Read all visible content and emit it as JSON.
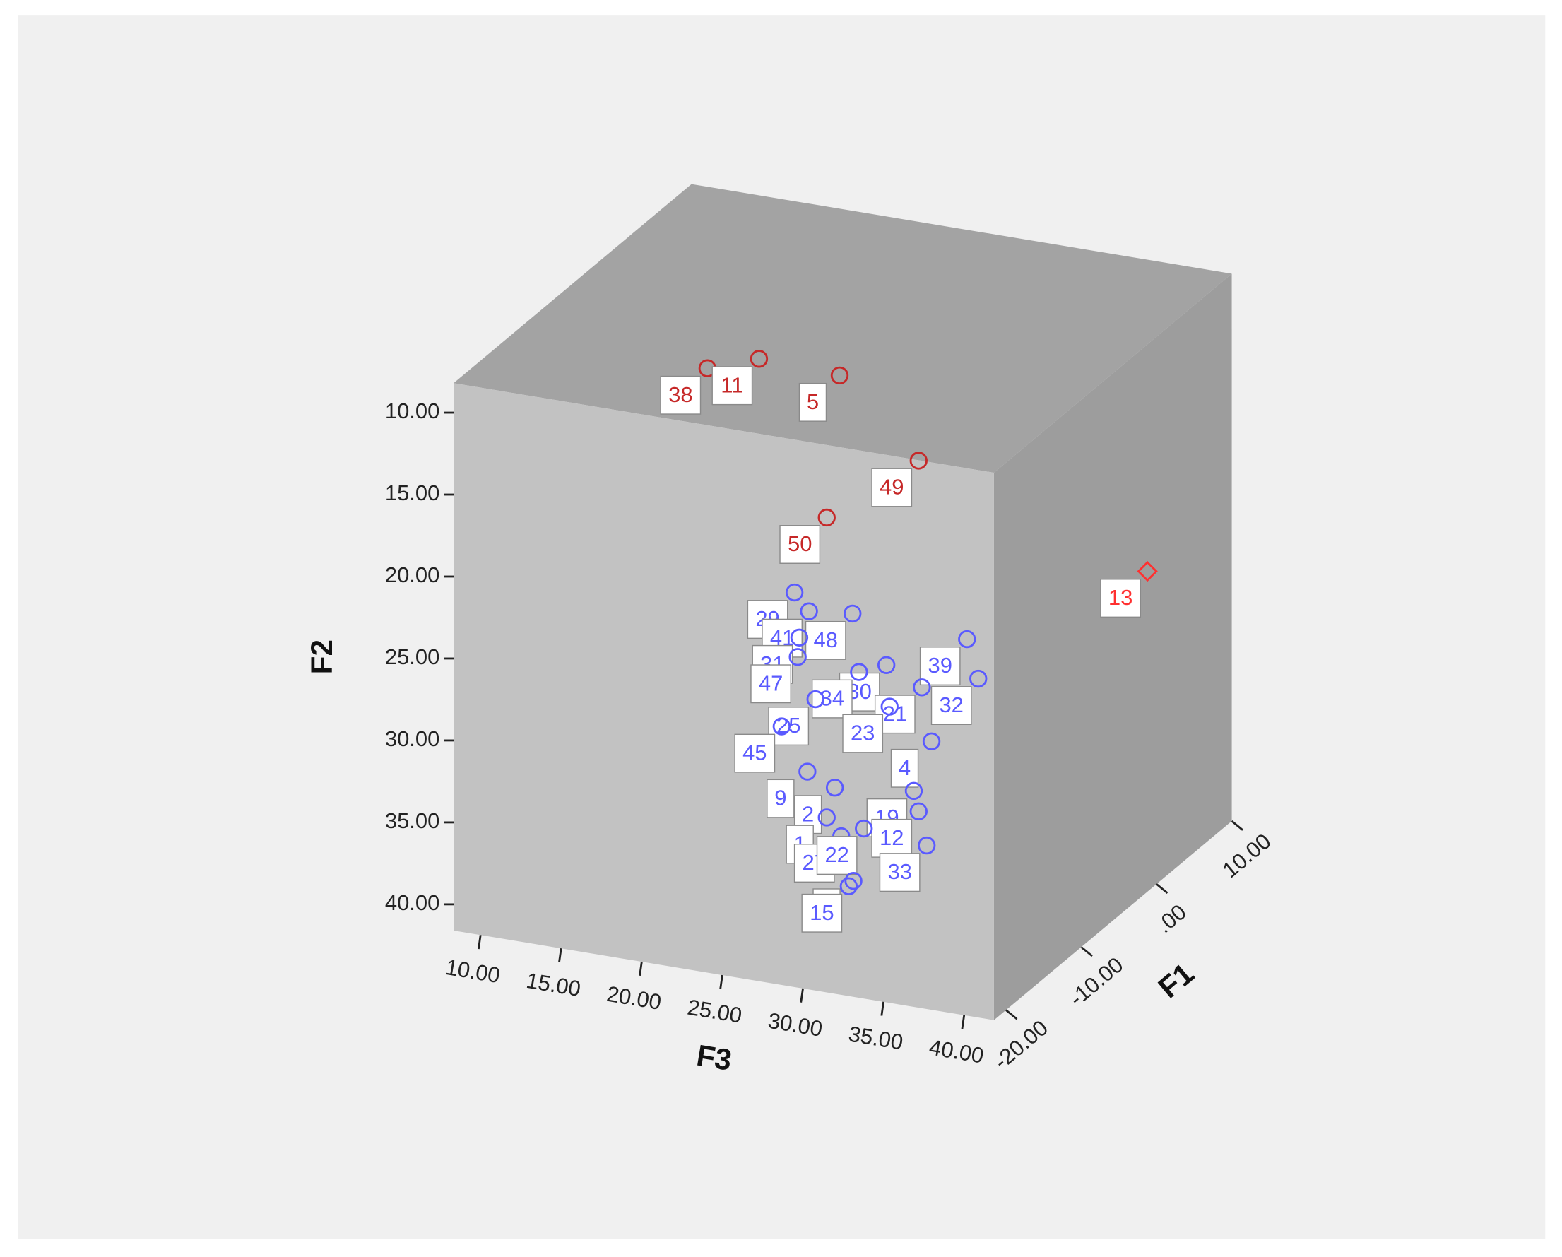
{
  "chart_data": {
    "type": "scatter3d",
    "x_label": "F3",
    "y_label": "F2",
    "z_label": "F1",
    "xlim": [
      8.33,
      41.85
    ],
    "ylim": [
      8.2,
      41.6
    ],
    "zlim": [
      -21.6,
      10
    ],
    "y_inverted": true,
    "xticks": [
      {
        "value": 10,
        "label": "10.00"
      },
      {
        "value": 15,
        "label": "15.00"
      },
      {
        "value": 20,
        "label": "20.00"
      },
      {
        "value": 25,
        "label": "25.00"
      },
      {
        "value": 30,
        "label": "30.00"
      },
      {
        "value": 35,
        "label": "35.00"
      },
      {
        "value": 40,
        "label": "40.00"
      }
    ],
    "yticks": [
      {
        "value": 10,
        "label": "10.00"
      },
      {
        "value": 15,
        "label": "15.00"
      },
      {
        "value": 20,
        "label": "20.00"
      },
      {
        "value": 25,
        "label": "25.00"
      },
      {
        "value": 30,
        "label": "30.00"
      },
      {
        "value": 35,
        "label": "35.00"
      },
      {
        "value": 40,
        "label": "40.00"
      }
    ],
    "zticks": [
      {
        "value": -20,
        "label": "-20.00"
      },
      {
        "value": -10,
        "label": "-10.00"
      },
      {
        "value": 0,
        "label": ".00"
      },
      {
        "value": 10,
        "label": "10.00"
      }
    ],
    "series": [
      {
        "color": "#c62828",
        "marker": "circle",
        "labels": [
          "38",
          "11",
          "5",
          "49",
          "50"
        ],
        "x": [
          16.7,
          19.9,
          24.9,
          29.8,
          24.1
        ],
        "y": [
          12.0,
          10.9,
          11.1,
          15.5,
          19.9
        ],
        "z": [
          -5.8,
          -5.8,
          -5.8,
          -5.8,
          -5.8
        ]
      },
      {
        "color": "#ff3030",
        "marker": "diamond",
        "labels": [
          "13"
        ],
        "x": [
          41.8
        ],
        "y": [
          22.1
        ],
        "z": [
          -1.1
        ]
      },
      {
        "color": "#5a5aff",
        "marker": "circle",
        "labels": [
          "29",
          "41",
          "48",
          "31",
          "47",
          "39",
          "32",
          "30",
          "34",
          "21",
          "23",
          "25",
          "45",
          "4",
          "19",
          "12",
          "9",
          "2",
          "1",
          "27",
          "22",
          "8",
          "33",
          "15"
        ],
        "x": [
          22.1,
          23.0,
          25.7,
          22.4,
          22.3,
          32.8,
          33.5,
          27.8,
          26.1,
          30.0,
          28.0,
          23.4,
          21.3,
          30.6,
          29.5,
          29.8,
          22.9,
          24.6,
          24.1,
          25.0,
          26.4,
          28.7,
          30.3,
          29.9
        ],
        "y": [
          24.8,
          25.8,
          25.5,
          27.5,
          28.7,
          25.9,
          28.2,
          28.3,
          29.0,
          29.3,
          30.8,
          31.1,
          33.1,
          32.5,
          35.7,
          36.9,
          35.6,
          36.3,
          38.2,
          39.2,
          38.5,
          38.9,
          38.9,
          37.8
        ],
        "z": [
          -5.8,
          -5.8,
          -5.8,
          -5.8,
          -5.8,
          -5.8,
          -5.8,
          -5.8,
          -5.8,
          -5.8,
          -5.8,
          -5.8,
          -5.8,
          -5.8,
          -5.8,
          -5.8,
          -5.8,
          -5.8,
          -5.8,
          -5.8,
          -5.8,
          -12.1,
          -5.8,
          -15.3
        ]
      }
    ]
  }
}
